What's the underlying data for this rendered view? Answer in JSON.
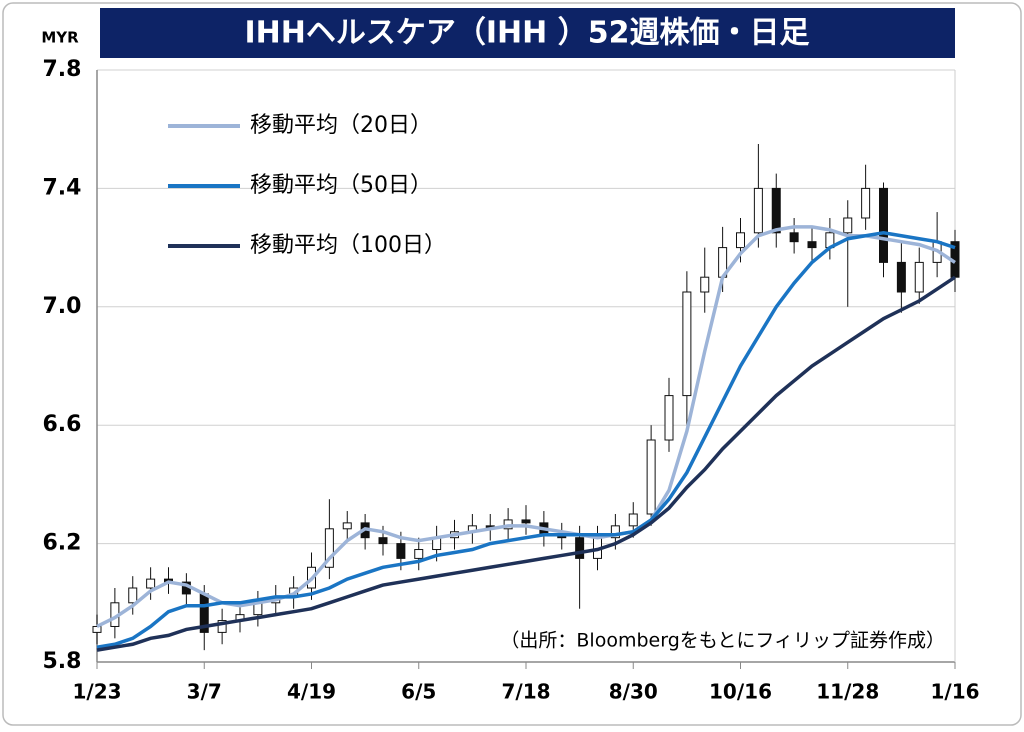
{
  "chart_data": {
    "type": "candlestick",
    "title": "IHHヘルスケア（IHH ）52週株価・日足",
    "y_unit": "MYR",
    "source": "（出所：Bloombergをもとにフィリップ証券作成）",
    "categories": [
      "1/23",
      null,
      null,
      null,
      null,
      null,
      "3/7",
      null,
      null,
      null,
      null,
      null,
      "4/19",
      null,
      null,
      null,
      null,
      null,
      "6/5",
      null,
      null,
      null,
      null,
      null,
      "7/18",
      null,
      null,
      null,
      null,
      null,
      "8/30",
      null,
      null,
      null,
      null,
      null,
      "10/16",
      null,
      null,
      null,
      null,
      null,
      "11/28",
      null,
      null,
      null,
      null,
      null,
      "1/16"
    ],
    "candles": {
      "up_color": "#ffffff",
      "down_color": "#111111",
      "open": [
        5.9,
        5.92,
        6.0,
        6.05,
        6.08,
        6.07,
        6.03,
        5.9,
        5.94,
        5.96,
        6.0,
        6.02,
        6.05,
        6.12,
        6.25,
        6.27,
        6.22,
        6.2,
        6.15,
        6.18,
        6.22,
        6.24,
        6.26,
        6.25,
        6.28,
        6.27,
        6.23,
        6.22,
        6.15,
        6.22,
        6.26,
        6.3,
        6.55,
        6.7,
        7.05,
        7.1,
        7.2,
        7.25,
        7.4,
        7.25,
        7.22,
        7.2,
        7.25,
        7.3,
        7.4,
        7.15,
        7.05,
        7.15,
        7.22
      ],
      "high": [
        5.96,
        6.05,
        6.09,
        6.12,
        6.12,
        6.1,
        6.06,
        5.98,
        6.0,
        6.04,
        6.06,
        6.09,
        6.17,
        6.35,
        6.31,
        6.3,
        6.26,
        6.24,
        6.22,
        6.26,
        6.28,
        6.3,
        6.3,
        6.32,
        6.33,
        6.31,
        6.27,
        6.26,
        6.26,
        6.3,
        6.34,
        6.6,
        6.76,
        7.12,
        7.2,
        7.27,
        7.3,
        7.55,
        7.45,
        7.3,
        7.27,
        7.3,
        7.36,
        7.48,
        7.42,
        7.22,
        7.2,
        7.32,
        7.26
      ],
      "low": [
        5.86,
        5.88,
        5.96,
        6.01,
        6.03,
        5.99,
        5.84,
        5.86,
        5.9,
        5.92,
        5.96,
        5.98,
        6.01,
        6.08,
        6.21,
        6.18,
        6.16,
        6.11,
        6.11,
        6.14,
        6.18,
        6.2,
        6.21,
        6.21,
        6.23,
        6.19,
        6.18,
        5.98,
        6.11,
        6.18,
        6.22,
        6.26,
        6.51,
        6.6,
        6.98,
        7.05,
        7.15,
        7.2,
        7.2,
        7.18,
        7.15,
        7.16,
        7.0,
        7.26,
        7.1,
        6.98,
        7.01,
        7.1,
        7.05
      ],
      "close": [
        5.92,
        6.0,
        6.05,
        6.08,
        6.07,
        6.03,
        5.9,
        5.94,
        5.96,
        6.0,
        6.02,
        6.05,
        6.12,
        6.25,
        6.27,
        6.22,
        6.2,
        6.15,
        6.18,
        6.22,
        6.24,
        6.26,
        6.25,
        6.28,
        6.27,
        6.23,
        6.22,
        6.15,
        6.22,
        6.26,
        6.3,
        6.55,
        6.7,
        7.05,
        7.1,
        7.2,
        7.25,
        7.4,
        7.25,
        7.22,
        7.2,
        7.25,
        7.3,
        7.4,
        7.15,
        7.05,
        7.15,
        7.22,
        7.1
      ]
    },
    "series": [
      {
        "name": "移動平均（20日）",
        "color": "#9db4d8",
        "values": [
          5.92,
          5.95,
          5.99,
          6.04,
          6.07,
          6.06,
          6.03,
          6.0,
          5.99,
          6.0,
          6.01,
          6.03,
          6.08,
          6.15,
          6.21,
          6.25,
          6.24,
          6.22,
          6.21,
          6.22,
          6.23,
          6.24,
          6.25,
          6.26,
          6.26,
          6.25,
          6.24,
          6.23,
          6.22,
          6.23,
          6.24,
          6.28,
          6.38,
          6.58,
          6.85,
          7.1,
          7.18,
          7.24,
          7.26,
          7.27,
          7.27,
          7.26,
          7.24,
          7.24,
          7.23,
          7.22,
          7.21,
          7.19,
          7.15
        ]
      },
      {
        "name": "移動平均（50日）",
        "color": "#1a75c4",
        "values": [
          5.85,
          5.86,
          5.88,
          5.92,
          5.97,
          5.99,
          5.99,
          6.0,
          6.0,
          6.01,
          6.02,
          6.02,
          6.03,
          6.05,
          6.08,
          6.1,
          6.12,
          6.13,
          6.14,
          6.16,
          6.17,
          6.18,
          6.2,
          6.21,
          6.22,
          6.23,
          6.23,
          6.23,
          6.23,
          6.23,
          6.24,
          6.28,
          6.35,
          6.44,
          6.56,
          6.68,
          6.8,
          6.9,
          7.0,
          7.08,
          7.15,
          7.2,
          7.23,
          7.24,
          7.25,
          7.24,
          7.23,
          7.22,
          7.2
        ]
      },
      {
        "name": "移動平均（100日）",
        "color": "#1f3158",
        "values": [
          5.84,
          5.85,
          5.86,
          5.88,
          5.89,
          5.91,
          5.92,
          5.93,
          5.94,
          5.95,
          5.96,
          5.97,
          5.98,
          6.0,
          6.02,
          6.04,
          6.06,
          6.07,
          6.08,
          6.09,
          6.1,
          6.11,
          6.12,
          6.13,
          6.14,
          6.15,
          6.16,
          6.17,
          6.18,
          6.2,
          6.23,
          6.27,
          6.32,
          6.39,
          6.45,
          6.52,
          6.58,
          6.64,
          6.7,
          6.75,
          6.8,
          6.84,
          6.88,
          6.92,
          6.96,
          6.99,
          7.02,
          7.06,
          7.1
        ]
      }
    ],
    "ylim": [
      5.8,
      7.8
    ],
    "yticks": [
      5.8,
      6.2,
      6.6,
      {
        "value": 7,
        "label": "7.0"
      },
      7.4,
      7.8
    ],
    "grid": true
  }
}
